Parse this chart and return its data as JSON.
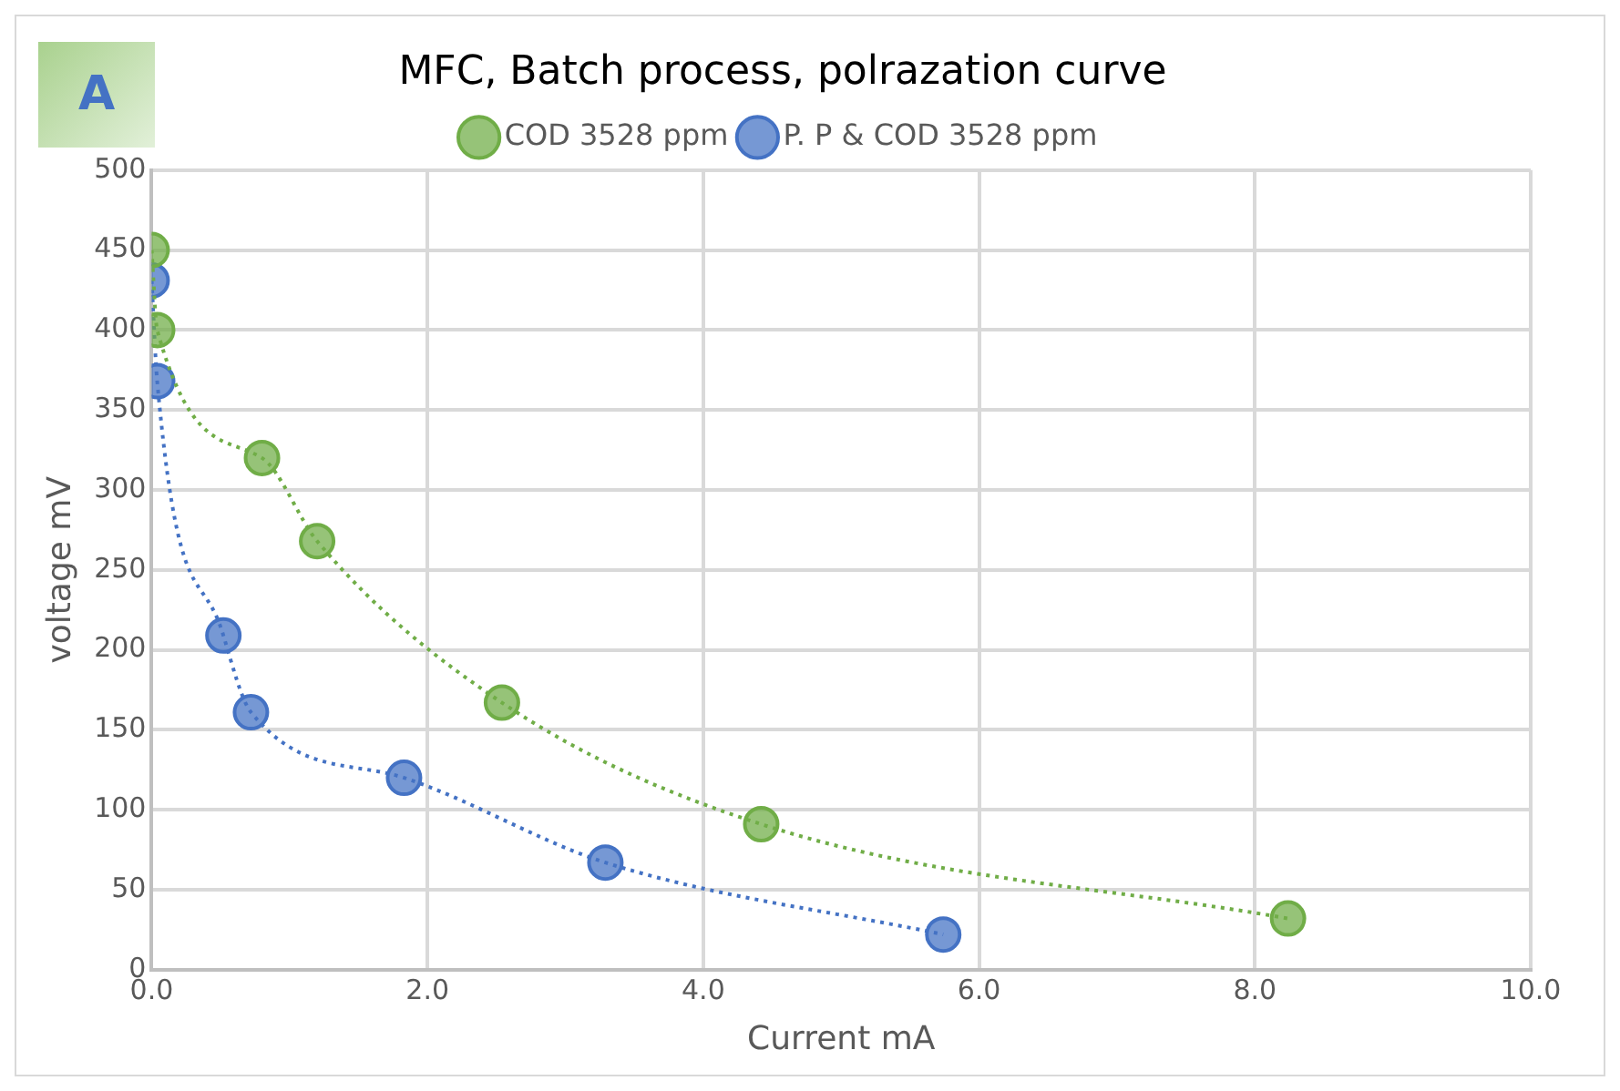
{
  "chart_data": {
    "type": "line",
    "title": "MFC, Batch process, polrazation curve",
    "xlabel": "Current mA",
    "ylabel": "voltage mV",
    "annotations": [
      "A"
    ],
    "series": [
      {
        "name": "COD 3528 ppm",
        "color": "#70ad47",
        "x": [
          0.0,
          0.04,
          0.8,
          1.2,
          2.54,
          4.42,
          8.24
        ],
        "values": [
          450,
          400,
          320,
          268,
          167,
          91,
          32
        ]
      },
      {
        "name": "P. P & COD 3528 ppm",
        "color": "#4472c4",
        "x": [
          0.0,
          0.04,
          0.52,
          0.72,
          1.83,
          3.29,
          5.74
        ],
        "values": [
          431,
          368,
          209,
          161,
          120,
          67,
          22
        ]
      }
    ],
    "xlim": [
      0,
      10
    ],
    "xticks": [
      {
        "value": 0,
        "label": "0.0"
      },
      {
        "value": 2,
        "label": "2.0"
      },
      {
        "value": 4,
        "label": "4.0"
      },
      {
        "value": 6,
        "label": "6.0"
      },
      {
        "value": 8,
        "label": "8.0"
      },
      {
        "value": 10,
        "label": "10.0"
      }
    ],
    "ylim": [
      0,
      500
    ],
    "yticks": [
      0,
      50,
      100,
      150,
      200,
      250,
      300,
      350,
      400,
      450,
      500
    ],
    "grid": true,
    "legend": "top",
    "marker": "circle",
    "line_style": "dotted"
  }
}
